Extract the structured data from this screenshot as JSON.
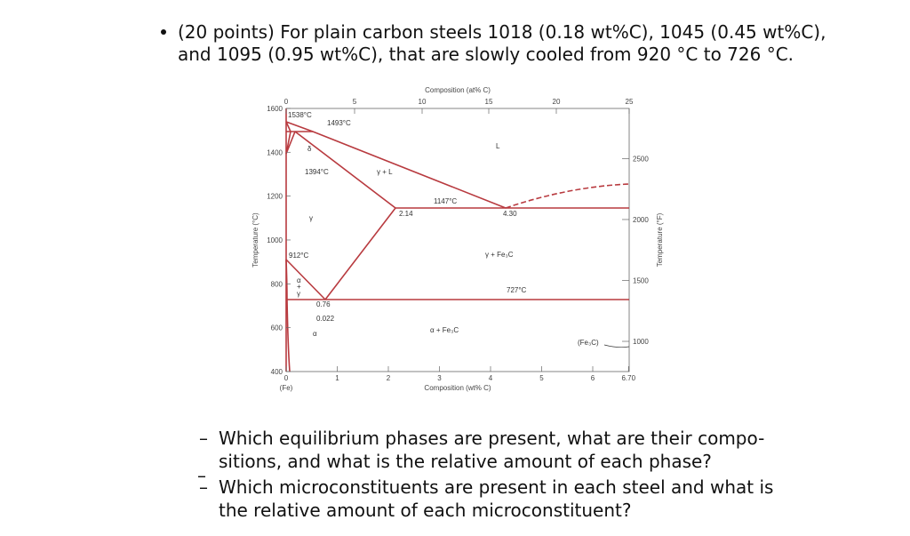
{
  "bullet": {
    "lines": [
      "(20 points) For plain carbon steels 1018 (0.18 wt%C), 1045 (0.45 wt%C),",
      "and 1095 (0.95 wt%C), that are slowly cooled from 920 °C to 726 °C."
    ]
  },
  "diagram": {
    "top_axis": {
      "title": "Composition (at% C)",
      "ticks": [
        "0",
        "5",
        "10",
        "15",
        "20",
        "25"
      ]
    },
    "bottom_axis": {
      "title": "Composition (wt% C)",
      "ticks": [
        "0",
        "1",
        "2",
        "3",
        "4",
        "5",
        "6",
        "6.70"
      ],
      "origin_label": "(Fe)"
    },
    "left_axis": {
      "title": "Temperature (°C)",
      "ticks": [
        "1600",
        "1400",
        "1200",
        "1000",
        "800",
        "600",
        "400"
      ]
    },
    "right_axis": {
      "title": "Temperature (°F)",
      "ticks": [
        "2500",
        "2000",
        "1500",
        "1000"
      ]
    },
    "labels": [
      "1538°C",
      "1493°C",
      "δ",
      "L",
      "1394°C",
      "γ + L",
      "1147°C",
      "2.14",
      "4.30",
      "γ",
      "912°C",
      "γ + Fe₃C",
      "α",
      "+",
      "γ",
      "727°C",
      "0.76",
      "0.022",
      "α",
      "α + Fe₃C",
      "(Fe₃C)"
    ]
  },
  "sub_bullets": [
    {
      "lines": [
        "Which equilibrium phases are present, what are their compo-",
        "sitions, and what is the relative amount of each phase?"
      ]
    },
    {
      "lines": [
        "Which microconstituents are present in each steel and what is",
        "the relative amount of each microconstituent?"
      ]
    }
  ]
}
